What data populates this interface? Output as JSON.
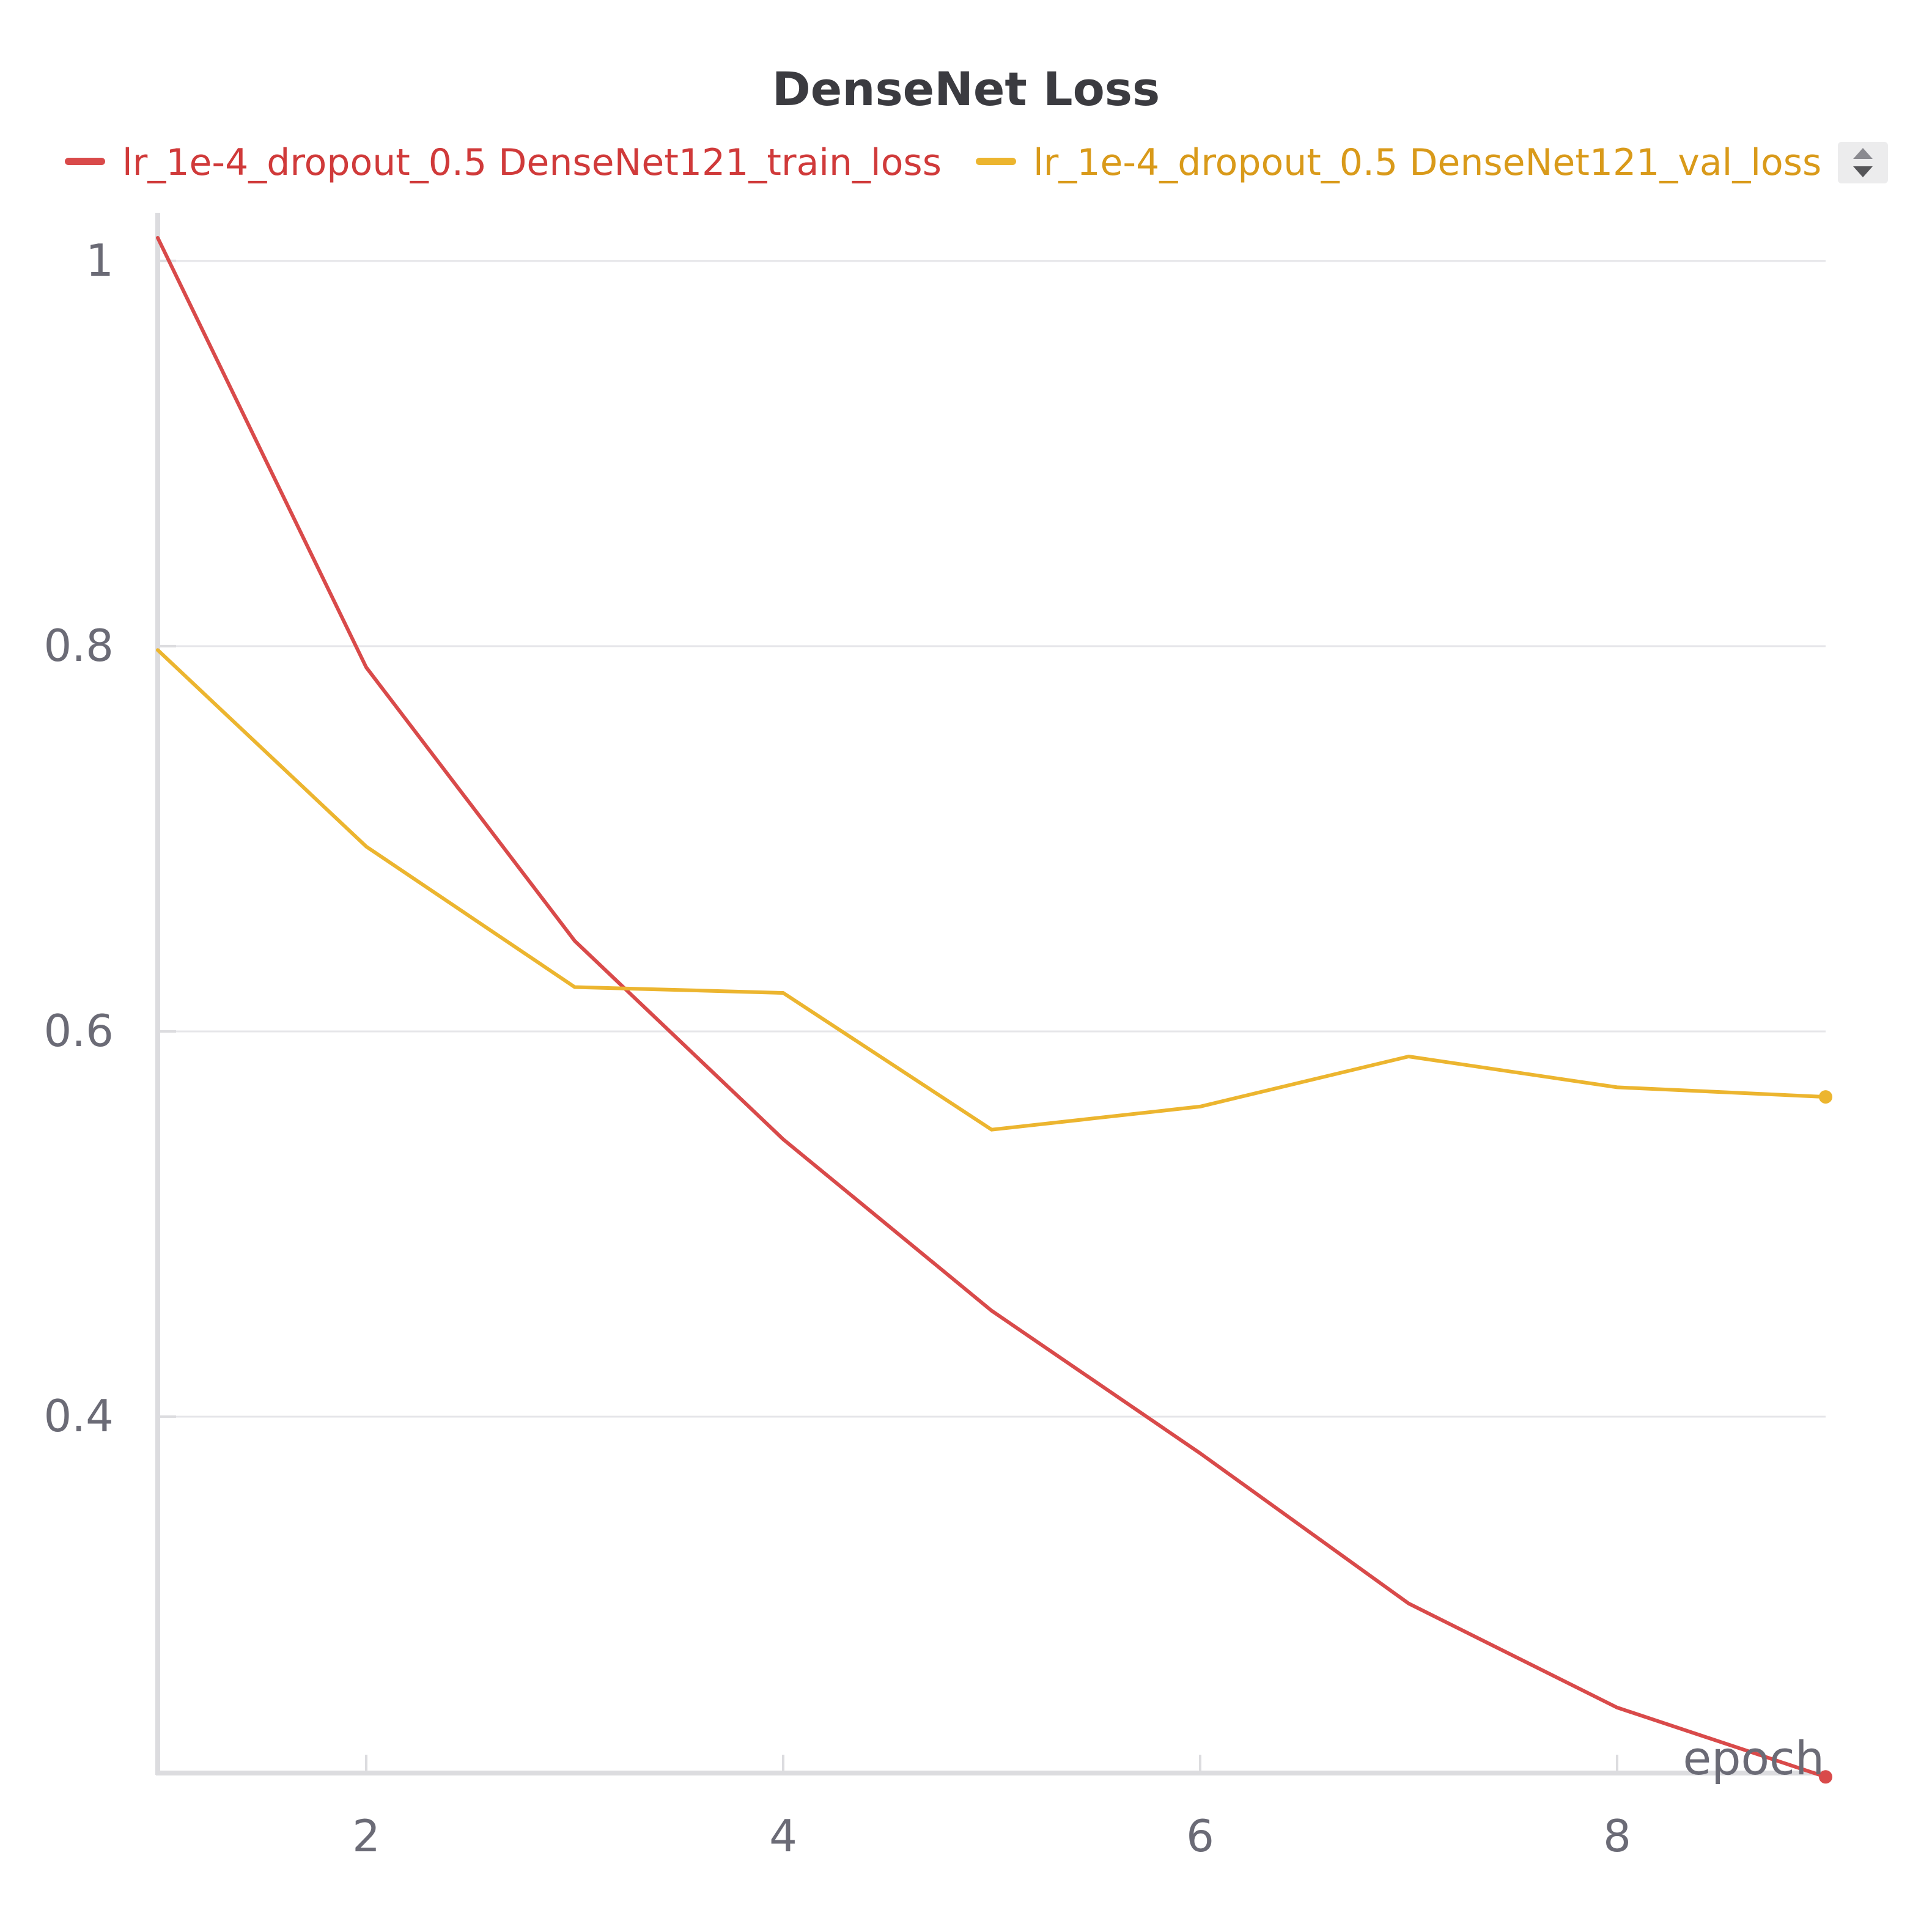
{
  "chart_data": {
    "type": "line",
    "title": "DenseNet Loss",
    "xlabel": "epoch",
    "ylabel": "",
    "xlim": [
      1,
      9
    ],
    "ylim": [
      0.215,
      1.025
    ],
    "x_ticks": [
      2,
      4,
      6,
      8
    ],
    "y_ticks": [
      0.4,
      0.6,
      0.8,
      1
    ],
    "y_tick_labels": [
      "0.4",
      "0.6",
      "0.8",
      "1"
    ],
    "grid": true,
    "legend_position": "top",
    "series": [
      {
        "name": "lr_1e-4_dropout_0.5 DenseNet121_train_loss",
        "color": "#d94a4a",
        "x": [
          1,
          2,
          3,
          4,
          5,
          6,
          7,
          8,
          9
        ],
        "y": [
          1.012,
          0.789,
          0.647,
          0.544,
          0.455,
          0.381,
          0.303,
          0.249,
          0.213
        ]
      },
      {
        "name": "lr_1e-4_dropout_0.5 DenseNet121_val_loss",
        "color": "#ecb52f",
        "x": [
          1,
          2,
          3,
          4,
          5,
          6,
          7,
          8,
          9
        ],
        "y": [
          0.798,
          0.696,
          0.623,
          0.62,
          0.549,
          0.561,
          0.587,
          0.571,
          0.566
        ]
      }
    ]
  },
  "legend_label_colors": [
    "#d03a3a",
    "#d99a1a"
  ],
  "ui": {
    "legend_scroll_icon": "up-down-chevron-icon"
  }
}
